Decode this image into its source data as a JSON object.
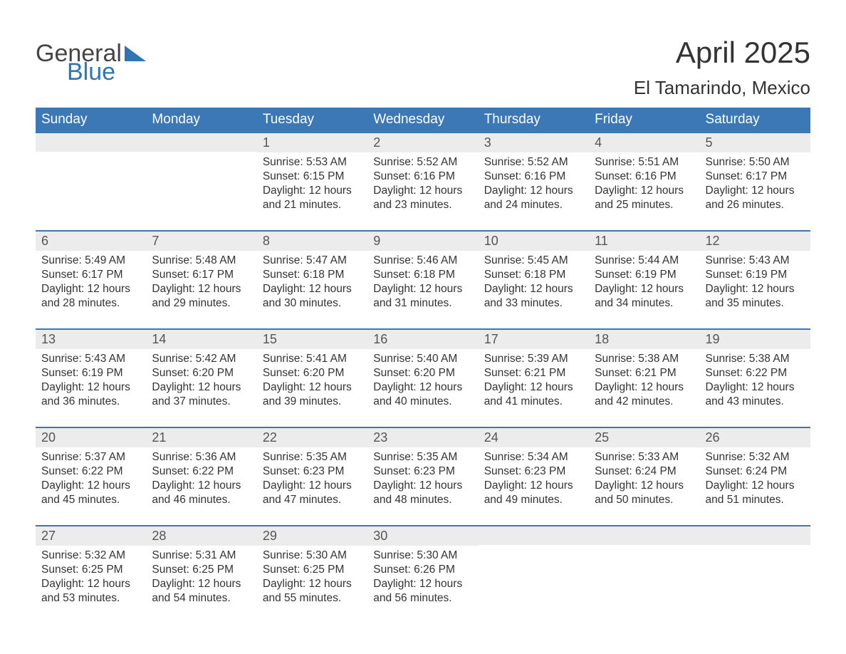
{
  "brand": {
    "part1": "General",
    "part2": "Blue"
  },
  "title": "April 2025",
  "location": "El Tamarindo, Mexico",
  "colors": {
    "header_bg": "#3b78b5",
    "header_text": "#ffffff",
    "daynum_bg": "#ececec",
    "text": "#333333",
    "row_border": "#3b78b5",
    "brand_blue": "#2f75b5"
  },
  "weekdays": [
    "Sunday",
    "Monday",
    "Tuesday",
    "Wednesday",
    "Thursday",
    "Friday",
    "Saturday"
  ],
  "weeks": [
    [
      null,
      null,
      {
        "n": "1",
        "sr": "Sunrise: 5:53 AM",
        "ss": "Sunset: 6:15 PM",
        "dl": "Daylight: 12 hours and 21 minutes."
      },
      {
        "n": "2",
        "sr": "Sunrise: 5:52 AM",
        "ss": "Sunset: 6:16 PM",
        "dl": "Daylight: 12 hours and 23 minutes."
      },
      {
        "n": "3",
        "sr": "Sunrise: 5:52 AM",
        "ss": "Sunset: 6:16 PM",
        "dl": "Daylight: 12 hours and 24 minutes."
      },
      {
        "n": "4",
        "sr": "Sunrise: 5:51 AM",
        "ss": "Sunset: 6:16 PM",
        "dl": "Daylight: 12 hours and 25 minutes."
      },
      {
        "n": "5",
        "sr": "Sunrise: 5:50 AM",
        "ss": "Sunset: 6:17 PM",
        "dl": "Daylight: 12 hours and 26 minutes."
      }
    ],
    [
      {
        "n": "6",
        "sr": "Sunrise: 5:49 AM",
        "ss": "Sunset: 6:17 PM",
        "dl": "Daylight: 12 hours and 28 minutes."
      },
      {
        "n": "7",
        "sr": "Sunrise: 5:48 AM",
        "ss": "Sunset: 6:17 PM",
        "dl": "Daylight: 12 hours and 29 minutes."
      },
      {
        "n": "8",
        "sr": "Sunrise: 5:47 AM",
        "ss": "Sunset: 6:18 PM",
        "dl": "Daylight: 12 hours and 30 minutes."
      },
      {
        "n": "9",
        "sr": "Sunrise: 5:46 AM",
        "ss": "Sunset: 6:18 PM",
        "dl": "Daylight: 12 hours and 31 minutes."
      },
      {
        "n": "10",
        "sr": "Sunrise: 5:45 AM",
        "ss": "Sunset: 6:18 PM",
        "dl": "Daylight: 12 hours and 33 minutes."
      },
      {
        "n": "11",
        "sr": "Sunrise: 5:44 AM",
        "ss": "Sunset: 6:19 PM",
        "dl": "Daylight: 12 hours and 34 minutes."
      },
      {
        "n": "12",
        "sr": "Sunrise: 5:43 AM",
        "ss": "Sunset: 6:19 PM",
        "dl": "Daylight: 12 hours and 35 minutes."
      }
    ],
    [
      {
        "n": "13",
        "sr": "Sunrise: 5:43 AM",
        "ss": "Sunset: 6:19 PM",
        "dl": "Daylight: 12 hours and 36 minutes."
      },
      {
        "n": "14",
        "sr": "Sunrise: 5:42 AM",
        "ss": "Sunset: 6:20 PM",
        "dl": "Daylight: 12 hours and 37 minutes."
      },
      {
        "n": "15",
        "sr": "Sunrise: 5:41 AM",
        "ss": "Sunset: 6:20 PM",
        "dl": "Daylight: 12 hours and 39 minutes."
      },
      {
        "n": "16",
        "sr": "Sunrise: 5:40 AM",
        "ss": "Sunset: 6:20 PM",
        "dl": "Daylight: 12 hours and 40 minutes."
      },
      {
        "n": "17",
        "sr": "Sunrise: 5:39 AM",
        "ss": "Sunset: 6:21 PM",
        "dl": "Daylight: 12 hours and 41 minutes."
      },
      {
        "n": "18",
        "sr": "Sunrise: 5:38 AM",
        "ss": "Sunset: 6:21 PM",
        "dl": "Daylight: 12 hours and 42 minutes."
      },
      {
        "n": "19",
        "sr": "Sunrise: 5:38 AM",
        "ss": "Sunset: 6:22 PM",
        "dl": "Daylight: 12 hours and 43 minutes."
      }
    ],
    [
      {
        "n": "20",
        "sr": "Sunrise: 5:37 AM",
        "ss": "Sunset: 6:22 PM",
        "dl": "Daylight: 12 hours and 45 minutes."
      },
      {
        "n": "21",
        "sr": "Sunrise: 5:36 AM",
        "ss": "Sunset: 6:22 PM",
        "dl": "Daylight: 12 hours and 46 minutes."
      },
      {
        "n": "22",
        "sr": "Sunrise: 5:35 AM",
        "ss": "Sunset: 6:23 PM",
        "dl": "Daylight: 12 hours and 47 minutes."
      },
      {
        "n": "23",
        "sr": "Sunrise: 5:35 AM",
        "ss": "Sunset: 6:23 PM",
        "dl": "Daylight: 12 hours and 48 minutes."
      },
      {
        "n": "24",
        "sr": "Sunrise: 5:34 AM",
        "ss": "Sunset: 6:23 PM",
        "dl": "Daylight: 12 hours and 49 minutes."
      },
      {
        "n": "25",
        "sr": "Sunrise: 5:33 AM",
        "ss": "Sunset: 6:24 PM",
        "dl": "Daylight: 12 hours and 50 minutes."
      },
      {
        "n": "26",
        "sr": "Sunrise: 5:32 AM",
        "ss": "Sunset: 6:24 PM",
        "dl": "Daylight: 12 hours and 51 minutes."
      }
    ],
    [
      {
        "n": "27",
        "sr": "Sunrise: 5:32 AM",
        "ss": "Sunset: 6:25 PM",
        "dl": "Daylight: 12 hours and 53 minutes."
      },
      {
        "n": "28",
        "sr": "Sunrise: 5:31 AM",
        "ss": "Sunset: 6:25 PM",
        "dl": "Daylight: 12 hours and 54 minutes."
      },
      {
        "n": "29",
        "sr": "Sunrise: 5:30 AM",
        "ss": "Sunset: 6:25 PM",
        "dl": "Daylight: 12 hours and 55 minutes."
      },
      {
        "n": "30",
        "sr": "Sunrise: 5:30 AM",
        "ss": "Sunset: 6:26 PM",
        "dl": "Daylight: 12 hours and 56 minutes."
      },
      null,
      null,
      null
    ]
  ]
}
